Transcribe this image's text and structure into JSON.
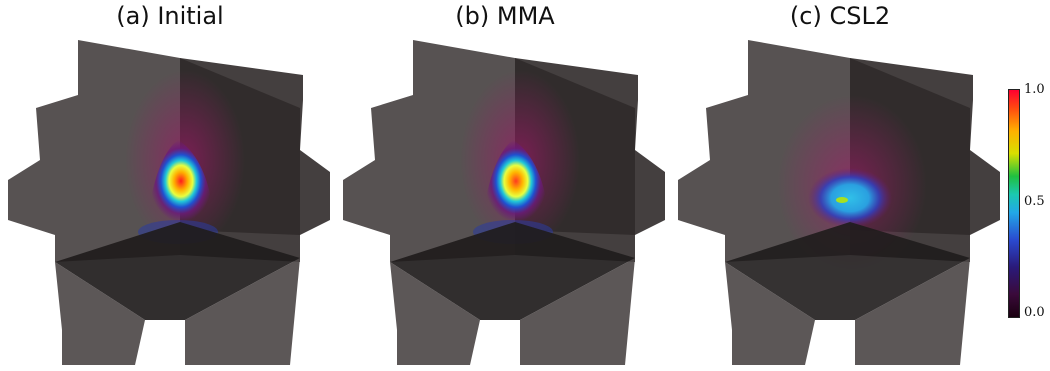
{
  "panels": [
    {
      "id": "initial",
      "title": "(a) Initial"
    },
    {
      "id": "mma",
      "title": "(b) MMA"
    },
    {
      "id": "csl2",
      "title": "(c) CSL2"
    }
  ],
  "colorbar": {
    "max_label": "1.0",
    "mid_label": "0.5",
    "min_label": "0.0",
    "min": 0.0,
    "max": 1.0,
    "colormap": "jet-like (black-purple-blue-cyan-green-yellow-red)"
  },
  "colors": {
    "plane_gray": "#4a4545",
    "plane_dark": "#262222"
  }
}
